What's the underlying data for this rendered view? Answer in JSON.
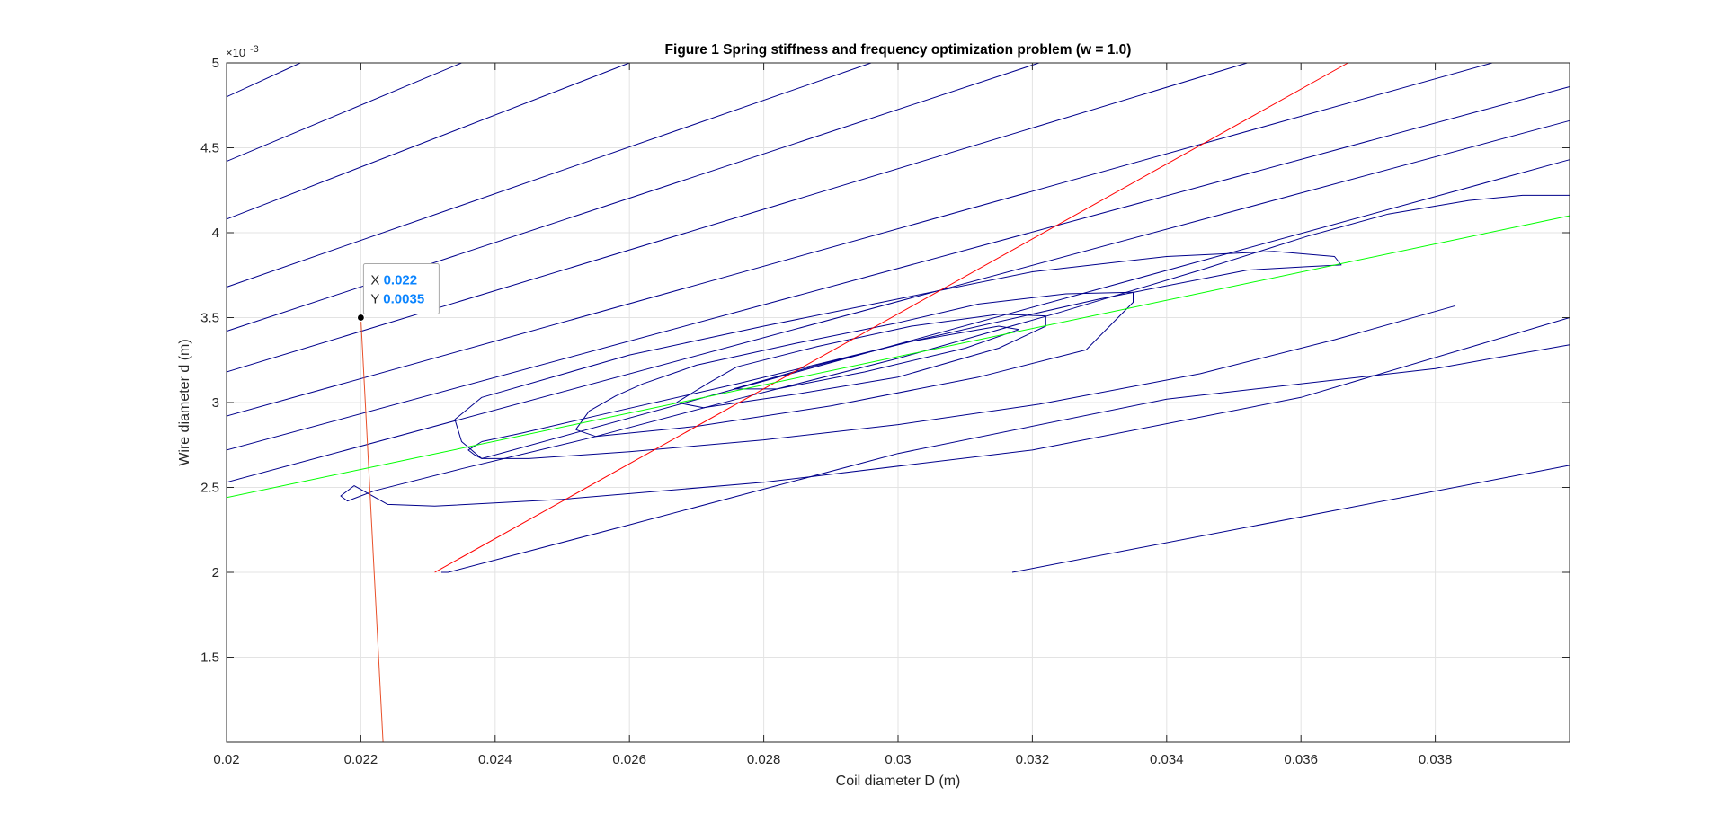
{
  "chart_data": {
    "type": "line",
    "title": "Figure 1     Spring stiffness and frequency optimization problem (w = 1.0)",
    "xlabel": "Coil diameter D (m)",
    "ylabel": "Wire diameter d (m)",
    "xlim": [
      0.02,
      0.04
    ],
    "ylim": [
      0.001,
      0.005
    ],
    "x_ticks": [
      0.02,
      0.022,
      0.024,
      0.026,
      0.028,
      0.03,
      0.032,
      0.034,
      0.036,
      0.038
    ],
    "x_tick_labels": [
      "0.02",
      "0.022",
      "0.024",
      "0.026",
      "0.028",
      "0.03",
      "0.032",
      "0.034",
      "0.036",
      "0.038"
    ],
    "y_ticks": [
      0.0015,
      0.002,
      0.0025,
      0.003,
      0.0035,
      0.004,
      0.0045,
      0.005
    ],
    "y_tick_labels": [
      "1.5",
      "2",
      "2.5",
      "3",
      "3.5",
      "4",
      "4.5",
      "5"
    ],
    "y_exponent_label": "×10",
    "y_exponent_power": "-3",
    "grid": true,
    "colors": {
      "contour": "#00008b",
      "red_line": "#ff0000",
      "orange_line": "#e8502a",
      "green_line": "#00ff00",
      "datatip_value": "#0a84ff"
    },
    "series": [
      {
        "kind": "contour",
        "points": [
          [
            0.02,
            0.0048
          ],
          [
            0.0211,
            0.005
          ]
        ]
      },
      {
        "kind": "contour",
        "points": [
          [
            0.02,
            0.00442
          ],
          [
            0.0235,
            0.005
          ]
        ]
      },
      {
        "kind": "contour",
        "points": [
          [
            0.02,
            0.00408
          ],
          [
            0.026,
            0.005
          ]
        ]
      },
      {
        "kind": "contour",
        "points": [
          [
            0.02,
            0.00368
          ],
          [
            0.0296,
            0.005
          ]
        ]
      },
      {
        "kind": "contour",
        "points": [
          [
            0.02,
            0.00342
          ],
          [
            0.0321,
            0.005
          ]
        ]
      },
      {
        "kind": "contour",
        "points": [
          [
            0.02,
            0.00318
          ],
          [
            0.0352,
            0.005
          ]
        ]
      },
      {
        "kind": "contour",
        "points": [
          [
            0.02,
            0.00292
          ],
          [
            0.03885,
            0.005
          ]
        ]
      },
      {
        "kind": "contour",
        "points": [
          [
            0.02,
            0.00272
          ],
          [
            0.04,
            0.00486
          ]
        ]
      },
      {
        "kind": "contour",
        "points": [
          [
            0.02,
            0.00253
          ],
          [
            0.04,
            0.00466
          ]
        ]
      },
      {
        "kind": "contour",
        "points": [
          [
            0.04,
            0.00443
          ],
          [
            0.0238,
            0.00267
          ],
          [
            0.0237,
            0.00269
          ],
          [
            0.0236,
            0.00272
          ],
          [
            0.0238,
            0.00277
          ]
        ]
      },
      {
        "kind": "contour",
        "points": [
          [
            0.04,
            0.00422
          ],
          [
            0.0393,
            0.00422
          ],
          [
            0.0385,
            0.00419
          ],
          [
            0.0373,
            0.00411
          ],
          [
            0.0361,
            0.00398
          ],
          [
            0.0345,
            0.00378
          ],
          [
            0.0324,
            0.00353
          ],
          [
            0.03,
            0.00326
          ],
          [
            0.0276,
            0.00302
          ],
          [
            0.0254,
            0.00279
          ],
          [
            0.0235,
            0.00261
          ],
          [
            0.0222,
            0.00248
          ],
          [
            0.0218,
            0.00242
          ],
          [
            0.0217,
            0.00245
          ],
          [
            0.0219,
            0.00251
          ],
          [
            0.0224,
            0.0024
          ],
          [
            0.0231,
            0.00239
          ],
          [
            0.025,
            0.00243
          ],
          [
            0.028,
            0.00253
          ],
          [
            0.032,
            0.00272
          ],
          [
            0.036,
            0.00303
          ],
          [
            0.04,
            0.0035
          ]
        ]
      },
      {
        "kind": "contour",
        "points": [
          [
            0.0238,
            0.00277
          ],
          [
            0.0244,
            0.00282
          ],
          [
            0.0256,
            0.00293
          ],
          [
            0.0276,
            0.00311
          ],
          [
            0.0302,
            0.00336
          ],
          [
            0.033,
            0.00361
          ],
          [
            0.0352,
            0.00378
          ],
          [
            0.0361,
            0.0038
          ],
          [
            0.0366,
            0.00381
          ],
          [
            0.0365,
            0.00386
          ],
          [
            0.0356,
            0.00389
          ],
          [
            0.034,
            0.00386
          ],
          [
            0.032,
            0.00377
          ],
          [
            0.03,
            0.00361
          ],
          [
            0.028,
            0.00345
          ],
          [
            0.026,
            0.00328
          ],
          [
            0.0238,
            0.00303
          ],
          [
            0.0234,
            0.0029
          ],
          [
            0.0235,
            0.00277
          ],
          [
            0.0238,
            0.00267
          ],
          [
            0.0245,
            0.00267
          ],
          [
            0.026,
            0.00271
          ],
          [
            0.028,
            0.00278
          ],
          [
            0.03,
            0.00287
          ],
          [
            0.0321,
            0.00299
          ],
          [
            0.0345,
            0.00317
          ],
          [
            0.0365,
            0.00337
          ],
          [
            0.0383,
            0.00357
          ]
        ]
      },
      {
        "kind": "contour",
        "points": [
          [
            0.0252,
            0.00284
          ],
          [
            0.0255,
            0.0028
          ],
          [
            0.027,
            0.00286
          ],
          [
            0.029,
            0.00298
          ],
          [
            0.0312,
            0.00315
          ],
          [
            0.0328,
            0.00331
          ],
          [
            0.0335,
            0.00359
          ],
          [
            0.0335,
            0.00365
          ],
          [
            0.0325,
            0.00364
          ],
          [
            0.0312,
            0.00358
          ],
          [
            0.03,
            0.00347
          ],
          [
            0.0285,
            0.00335
          ],
          [
            0.027,
            0.00322
          ],
          [
            0.0262,
            0.00311
          ],
          [
            0.0258,
            0.00304
          ],
          [
            0.0254,
            0.00295
          ],
          [
            0.0252,
            0.00284
          ]
        ]
      },
      {
        "kind": "contour",
        "points": [
          [
            0.0267,
            0.003
          ],
          [
            0.0271,
            0.00297
          ],
          [
            0.0285,
            0.00305
          ],
          [
            0.03,
            0.00315
          ],
          [
            0.0315,
            0.00332
          ],
          [
            0.0322,
            0.00345
          ],
          [
            0.0322,
            0.00351
          ],
          [
            0.0315,
            0.00352
          ],
          [
            0.0302,
            0.00345
          ],
          [
            0.0288,
            0.00333
          ],
          [
            0.0276,
            0.00321
          ],
          [
            0.0272,
            0.00312
          ],
          [
            0.0267,
            0.003
          ]
        ]
      },
      {
        "kind": "contour",
        "points": [
          [
            0.02755,
            0.00308
          ],
          [
            0.0282,
            0.00308
          ],
          [
            0.0295,
            0.00318
          ],
          [
            0.031,
            0.00332
          ],
          [
            0.0318,
            0.00343
          ],
          [
            0.0315,
            0.00345
          ],
          [
            0.0302,
            0.00336
          ],
          [
            0.0288,
            0.00322
          ],
          [
            0.02755,
            0.00308
          ]
        ]
      },
      {
        "kind": "contour",
        "points": [
          [
            0.0232,
            0.002
          ],
          [
            0.0233,
            0.002
          ],
          [
            0.026,
            0.00228
          ],
          [
            0.03,
            0.0027
          ],
          [
            0.034,
            0.00302
          ],
          [
            0.038,
            0.0032
          ],
          [
            0.04,
            0.00334
          ]
        ]
      },
      {
        "kind": "contour",
        "points": [
          [
            0.0317,
            0.002
          ],
          [
            0.04,
            0.00263
          ]
        ]
      },
      {
        "kind": "constraint-red",
        "points": [
          [
            0.0231,
            0.002
          ],
          [
            0.0367,
            0.005
          ]
        ]
      },
      {
        "kind": "constraint-orange",
        "points": [
          [
            0.022,
            0.0035
          ],
          [
            0.02233,
            0.001
          ]
        ]
      },
      {
        "kind": "constraint-green",
        "points": [
          [
            0.02,
            0.00244
          ],
          [
            0.04,
            0.0041
          ]
        ]
      }
    ],
    "annotations": [
      {
        "kind": "datatip",
        "x": 0.022,
        "y": 0.0035,
        "x_label": "X",
        "x_value": "0.022",
        "y_label": "Y",
        "y_value": "0.0035"
      }
    ]
  }
}
